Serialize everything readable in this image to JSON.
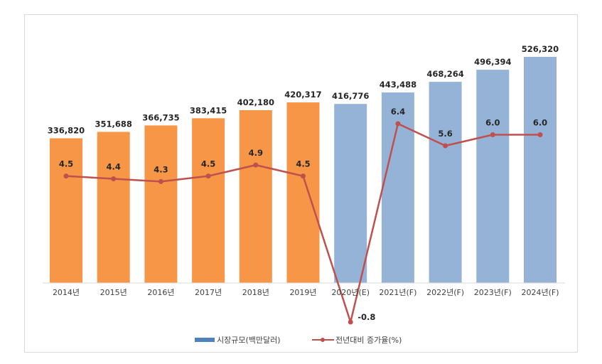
{
  "chart_data": {
    "type": "bar",
    "categories": [
      "2014년",
      "2015년",
      "2016년",
      "2017년",
      "2018년",
      "2019년",
      "2020년(E)",
      "2021년(F)",
      "2022년(F)",
      "2023년(F)",
      "2024년(F)"
    ],
    "series": [
      {
        "name": "시장규모(백만달러)",
        "type": "bar",
        "values": [
          336820,
          351688,
          366735,
          383415,
          402180,
          420317,
          416776,
          443488,
          468264,
          496394,
          526320
        ],
        "value_labels": [
          "336,820",
          "351,688",
          "366,735",
          "383,415",
          "402,180",
          "420,317",
          "416,776",
          "443,488",
          "468,264",
          "496,394",
          "526,320"
        ],
        "colors": [
          "#f79646",
          "#f79646",
          "#f79646",
          "#f79646",
          "#f79646",
          "#f79646",
          "#95b3d7",
          "#95b3d7",
          "#95b3d7",
          "#95b3d7",
          "#95b3d7"
        ]
      },
      {
        "name": "전년대비 증가율(%)",
        "type": "line",
        "values": [
          4.5,
          4.4,
          4.3,
          4.5,
          4.9,
          4.5,
          -0.8,
          6.4,
          5.6,
          6.0,
          6.0
        ],
        "value_labels": [
          "4.5",
          "4.4",
          "4.3",
          "4.5",
          "4.9",
          "4.5",
          "-0.8",
          "6.4",
          "5.6",
          "6.0",
          "6.0"
        ],
        "color": "#c0504d"
      }
    ],
    "title": "",
    "xlabel": "",
    "ylabel": "",
    "ylim": [
      0,
      526320
    ],
    "y2lim": [
      -0.8,
      6.4
    ],
    "grid": false,
    "legend_position": "bottom"
  }
}
